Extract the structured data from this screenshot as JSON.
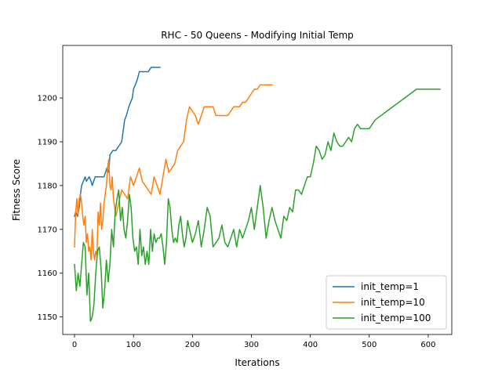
{
  "chart_data": {
    "type": "line",
    "title": "RHC - 50 Queens - Modifying Initial Temp",
    "xlabel": "Iterations",
    "ylabel": "Fitness Score",
    "xlim": [
      -20,
      640
    ],
    "ylim": [
      1146,
      1212
    ],
    "xticks": [
      0,
      100,
      200,
      300,
      400,
      500,
      600
    ],
    "yticks": [
      1150,
      1160,
      1170,
      1180,
      1190,
      1200
    ],
    "xtick_labels": [
      "0",
      "100",
      "200",
      "300",
      "400",
      "500",
      "600"
    ],
    "ytick_labels": [
      "1150",
      "1160",
      "1170",
      "1180",
      "1190",
      "1200"
    ],
    "grid": false,
    "legend_position": "lower-right",
    "series": [
      {
        "name": "init_temp=1",
        "color": "#1f77b4",
        "x": [
          0,
          2,
          5,
          8,
          10,
          12,
          15,
          18,
          20,
          25,
          28,
          30,
          35,
          40,
          45,
          50,
          55,
          58,
          60,
          65,
          70,
          75,
          80,
          85,
          88,
          92,
          95,
          98,
          100,
          103,
          106,
          110,
          113,
          116,
          120,
          125,
          130,
          135,
          140,
          145
        ],
        "y": [
          1173,
          1174,
          1173,
          1175,
          1178,
          1180,
          1181,
          1182,
          1181,
          1182,
          1181,
          1180,
          1182,
          1182,
          1182,
          1182,
          1184,
          1183,
          1187,
          1188,
          1188,
          1189,
          1190,
          1195,
          1196,
          1198,
          1199,
          1200,
          1202,
          1203,
          1204,
          1206,
          1206,
          1206,
          1206,
          1206,
          1207,
          1207,
          1207,
          1207
        ]
      },
      {
        "name": "init_temp=10",
        "color": "#ff7f0e",
        "x": [
          0,
          2,
          4,
          6,
          8,
          10,
          12,
          14,
          16,
          18,
          20,
          22,
          24,
          26,
          28,
          30,
          32,
          34,
          36,
          38,
          40,
          42,
          44,
          46,
          48,
          50,
          52,
          54,
          56,
          58,
          60,
          62,
          64,
          66,
          68,
          70,
          75,
          80,
          85,
          90,
          95,
          100,
          105,
          110,
          115,
          120,
          125,
          130,
          135,
          140,
          145,
          150,
          155,
          160,
          165,
          170,
          175,
          180,
          185,
          190,
          195,
          200,
          205,
          210,
          215,
          220,
          225,
          230,
          235,
          240,
          250,
          260,
          270,
          280,
          285,
          290,
          295,
          300,
          305,
          310,
          315,
          320,
          325,
          330,
          335
        ],
        "y": [
          1166,
          1174,
          1177,
          1173,
          1177,
          1178,
          1176,
          1173,
          1171,
          1173,
          1167,
          1169,
          1165,
          1166,
          1163,
          1170,
          1165,
          1163,
          1165,
          1164,
          1174,
          1171,
          1176,
          1170,
          1172,
          1176,
          1178,
          1180,
          1184,
          1186,
          1180,
          1179,
          1182,
          1177,
          1175,
          1173,
          1176,
          1179,
          1178,
          1177,
          1182,
          1180,
          1182,
          1184,
          1181,
          1180,
          1179,
          1178,
          1182,
          1180,
          1178,
          1182,
          1186,
          1183,
          1184,
          1185,
          1188,
          1189,
          1190,
          1195,
          1198,
          1197,
          1196,
          1194,
          1196,
          1198,
          1198,
          1198,
          1198,
          1196,
          1196,
          1196,
          1198,
          1198,
          1199,
          1199,
          1200,
          1201,
          1202,
          1202,
          1203,
          1203,
          1203,
          1203,
          1203
        ]
      },
      {
        "name": "init_temp=100",
        "color": "#2ca02c",
        "x": [
          0,
          3,
          6,
          9,
          12,
          15,
          18,
          21,
          24,
          27,
          30,
          33,
          36,
          39,
          42,
          45,
          48,
          51,
          54,
          57,
          60,
          63,
          66,
          69,
          72,
          75,
          78,
          81,
          84,
          87,
          90,
          93,
          96,
          99,
          102,
          105,
          108,
          111,
          114,
          117,
          120,
          123,
          126,
          129,
          132,
          135,
          138,
          141,
          144,
          147,
          150,
          153,
          156,
          159,
          162,
          165,
          168,
          171,
          174,
          177,
          180,
          183,
          186,
          189,
          192,
          195,
          200,
          205,
          210,
          215,
          220,
          225,
          230,
          235,
          240,
          245,
          250,
          255,
          260,
          265,
          270,
          275,
          280,
          285,
          290,
          295,
          300,
          305,
          310,
          315,
          320,
          325,
          330,
          335,
          340,
          345,
          350,
          355,
          360,
          365,
          370,
          375,
          380,
          385,
          390,
          395,
          400,
          405,
          410,
          415,
          420,
          425,
          430,
          435,
          440,
          445,
          450,
          455,
          460,
          465,
          470,
          475,
          480,
          485,
          490,
          495,
          500,
          505,
          510,
          520,
          530,
          540,
          550,
          560,
          570,
          580,
          590,
          600,
          605,
          610,
          615,
          620
        ],
        "y": [
          1162,
          1156,
          1160,
          1157,
          1162,
          1167,
          1166,
          1155,
          1160,
          1149,
          1150,
          1153,
          1160,
          1165,
          1166,
          1161,
          1152,
          1156,
          1163,
          1158,
          1162,
          1170,
          1166,
          1174,
          1177,
          1179,
          1172,
          1175,
          1170,
          1168,
          1172,
          1178,
          1175,
          1168,
          1165,
          1166,
          1162,
          1170,
          1164,
          1166,
          1162,
          1165,
          1162,
          1170,
          1165,
          1169,
          1167,
          1168,
          1168,
          1169,
          1166,
          1162,
          1167,
          1177,
          1175,
          1170,
          1167,
          1168,
          1167,
          1171,
          1173,
          1169,
          1166,
          1168,
          1172,
          1170,
          1167,
          1169,
          1172,
          1166,
          1170,
          1175,
          1173,
          1166,
          1167,
          1168,
          1171,
          1167,
          1166,
          1168,
          1170,
          1166,
          1170,
          1168,
          1170,
          1172,
          1175,
          1170,
          1175,
          1180,
          1175,
          1168,
          1172,
          1175,
          1172,
          1170,
          1168,
          1173,
          1172,
          1175,
          1174,
          1179,
          1179,
          1178,
          1180,
          1182,
          1182,
          1185,
          1189,
          1188,
          1186,
          1187,
          1190,
          1188,
          1192,
          1190,
          1189,
          1189,
          1190,
          1191,
          1190,
          1193,
          1194,
          1193,
          1193,
          1193,
          1193,
          1194,
          1195,
          1196,
          1197,
          1198,
          1199,
          1200,
          1201,
          1202,
          1202,
          1202,
          1202,
          1202,
          1202,
          1202
        ]
      }
    ]
  }
}
